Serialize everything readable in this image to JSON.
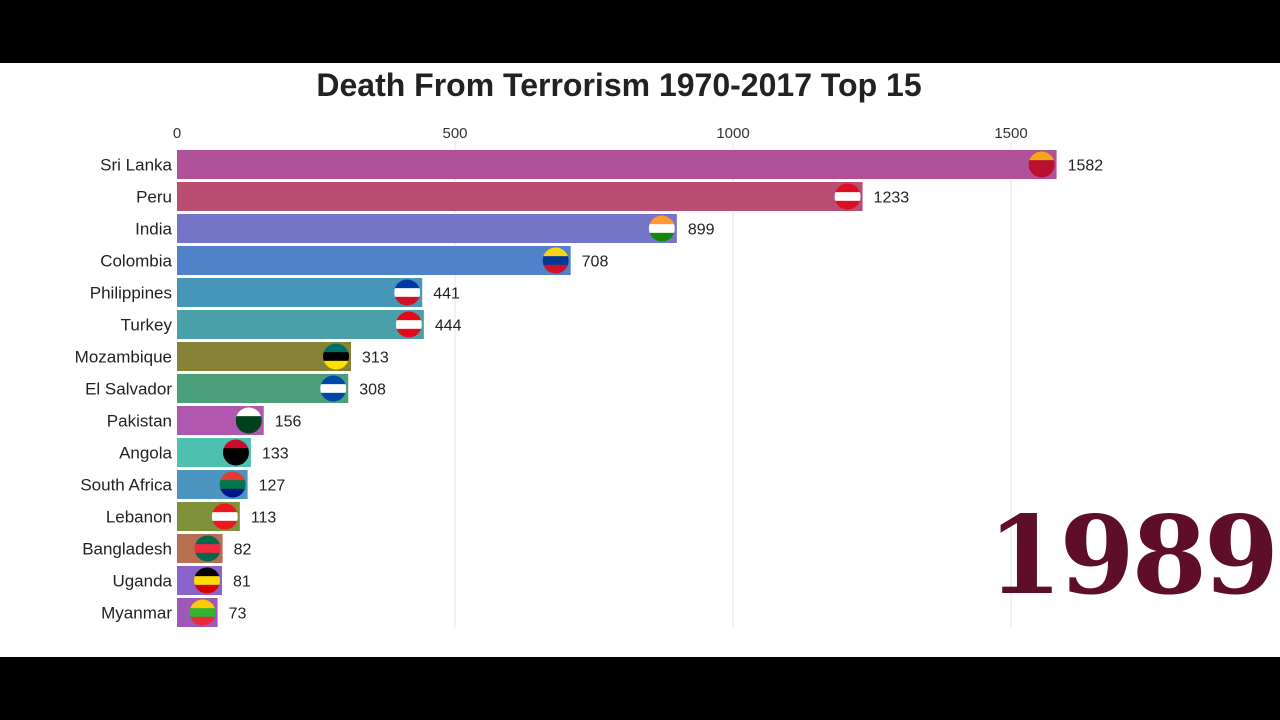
{
  "chart_data": {
    "type": "bar",
    "orientation": "horizontal",
    "title": "Death From Terrorism 1970-2017 Top 15",
    "year_label": "1989",
    "xlim": [
      0,
      1600
    ],
    "x_ticks": [
      0,
      500,
      1000,
      1500
    ],
    "grid": true,
    "categories": [
      "Sri Lanka",
      "Peru",
      "India",
      "Colombia",
      "Philippines",
      "Turkey",
      "Mozambique",
      "El Salvador",
      "Pakistan",
      "Angola",
      "South Africa",
      "Lebanon",
      "Bangladesh",
      "Uganda",
      "Myanmar"
    ],
    "values": [
      1582,
      1233,
      899,
      708,
      441,
      444,
      313,
      308,
      156,
      133,
      127,
      113,
      82,
      81,
      73
    ],
    "colors": [
      "#b05098",
      "#b94e72",
      "#7474c8",
      "#4f82c8",
      "#4596b8",
      "#4aa0a8",
      "#868236",
      "#4aa07a",
      "#b058b0",
      "#4ec0b0",
      "#4a96c0",
      "#7e9038",
      "#b86e50",
      "#8a64c8",
      "#a058b8"
    ],
    "flags": [
      [
        "#f2a71b",
        "#b8102e",
        "#b8102e"
      ],
      [
        "#d91023",
        "#ffffff",
        "#d91023"
      ],
      [
        "#ff9933",
        "#ffffff",
        "#138808"
      ],
      [
        "#fcd116",
        "#003893",
        "#ce1126"
      ],
      [
        "#0038a8",
        "#ffffff",
        "#ce1126"
      ],
      [
        "#e30a17",
        "#ffffff",
        "#e30a17"
      ],
      [
        "#007168",
        "#000000",
        "#fce100"
      ],
      [
        "#0047ab",
        "#ffffff",
        "#0047ab"
      ],
      [
        "#ffffff",
        "#01411c",
        "#01411c"
      ],
      [
        "#cc092f",
        "#000000",
        "#000000"
      ],
      [
        "#e03c31",
        "#007749",
        "#001489"
      ],
      [
        "#ee161f",
        "#ffffff",
        "#ee161f"
      ],
      [
        "#006a4e",
        "#f42a41",
        "#006a4e"
      ],
      [
        "#000000",
        "#fcdc04",
        "#d90000"
      ],
      [
        "#fecb00",
        "#34b233",
        "#ea2839"
      ]
    ]
  }
}
